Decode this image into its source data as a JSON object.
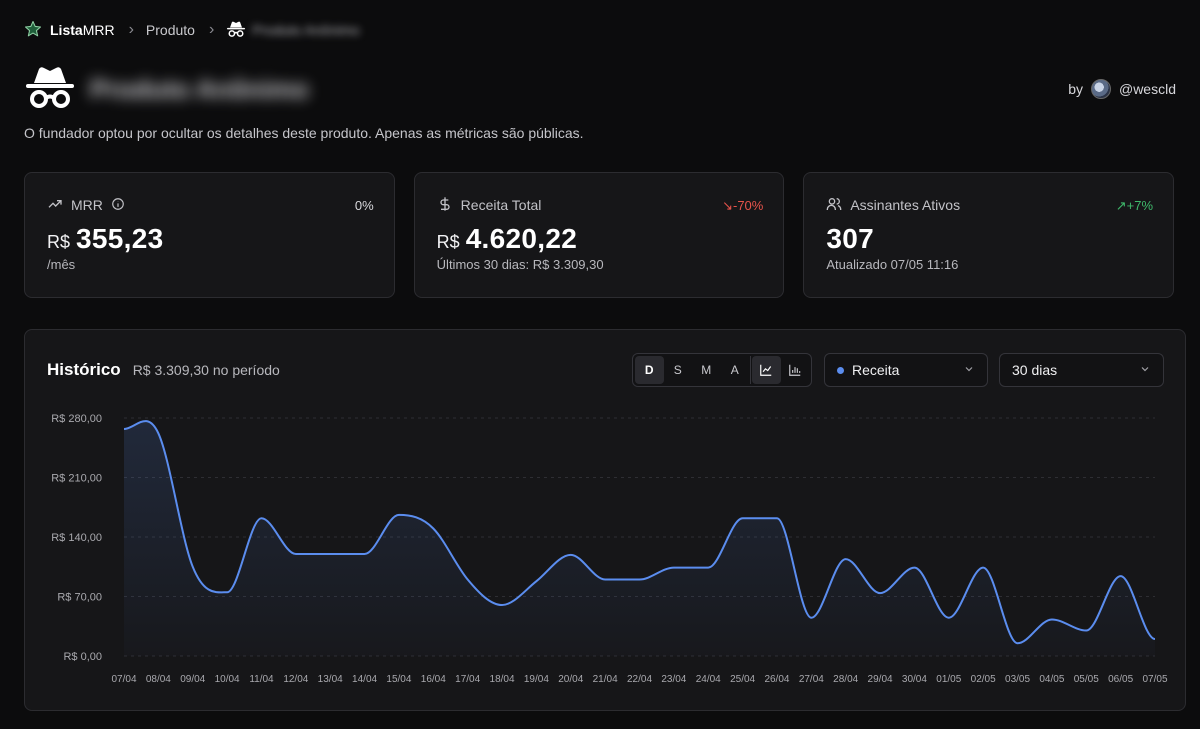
{
  "breadcrumb": {
    "brand_bold": "Lista",
    "brand_thin": "MRR",
    "item": "Produto",
    "current": "Produto Anônimo"
  },
  "product": {
    "name": "Produto Anônimo",
    "by_label": "by",
    "author": "@wescld",
    "description": "O fundador optou por ocultar os detalhes deste produto. Apenas as métricas são públicas."
  },
  "cards": {
    "mrr": {
      "label": "MRR",
      "change": "0%",
      "currency": "R$",
      "value": "355,23",
      "sub": "/mês"
    },
    "revenue": {
      "label": "Receita Total",
      "change": "↘-70%",
      "currency": "R$",
      "value": "4.620,22",
      "sub": "Últimos 30 dias: R$ 3.309,30"
    },
    "subscribers": {
      "label": "Assinantes Ativos",
      "change": "↗+7%",
      "value": "307",
      "sub": "Atualizado 07/05 11:16"
    }
  },
  "colors": {
    "accent": "#5b8def",
    "negative": "#e5534b",
    "positive": "#3fb96b"
  },
  "history": {
    "title": "Histórico",
    "subtitle": "R$ 3.309,30 no período",
    "segments": [
      "D",
      "S",
      "M",
      "A"
    ],
    "active_segment": "D",
    "view_icons": [
      "line-chart-icon",
      "bar-chart-icon"
    ],
    "metric_select": "Receita",
    "range_select": "30 dias"
  },
  "chart_data": {
    "type": "area",
    "x": [
      "07/04",
      "08/04",
      "09/04",
      "10/04",
      "11/04",
      "12/04",
      "13/04",
      "14/04",
      "15/04",
      "16/04",
      "17/04",
      "18/04",
      "19/04",
      "20/04",
      "21/04",
      "22/04",
      "23/04",
      "24/04",
      "25/04",
      "26/04",
      "27/04",
      "28/04",
      "29/04",
      "30/04",
      "01/05",
      "02/05",
      "03/05",
      "04/05",
      "05/05",
      "06/05",
      "07/05"
    ],
    "series": [
      {
        "values": [
          267,
          262,
          105,
          75,
          162,
          120,
          120,
          120,
          166,
          150,
          90,
          60,
          88,
          119,
          90,
          90,
          104,
          104,
          162,
          162,
          45,
          114,
          74,
          104,
          45,
          104,
          15,
          43,
          30,
          94,
          20
        ]
      }
    ],
    "ylim": [
      0,
      280
    ],
    "yticks": [
      "R$ 0,00",
      "R$ 70,00",
      "R$ 140,00",
      "R$ 210,00",
      "R$ 280,00"
    ],
    "grid": true
  }
}
